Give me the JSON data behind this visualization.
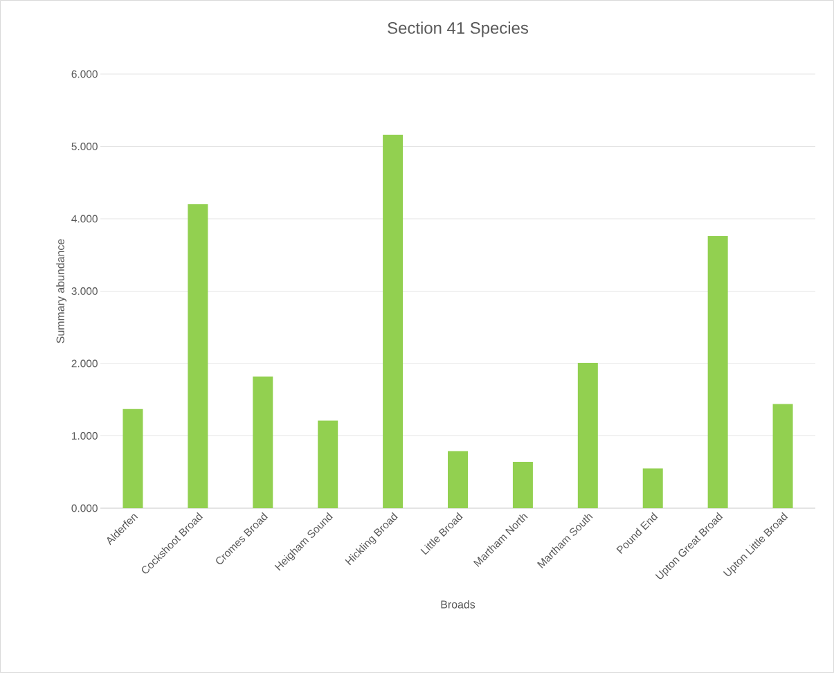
{
  "chart_data": {
    "type": "bar",
    "title": "Section 41 Species",
    "xlabel": "Broads",
    "ylabel": "Summary abundance",
    "categories": [
      "Alderfen",
      "Cockshoot Broad",
      "Cromes Broad",
      "Heigham Sound",
      "Hickling Broad",
      "Little Broad",
      "Martham North",
      "Martham South",
      "Pound End",
      "Upton Great Broad",
      "Upton Little Broad"
    ],
    "values": [
      1.37,
      4.2,
      1.82,
      1.21,
      5.16,
      0.79,
      0.64,
      2.01,
      0.55,
      3.76,
      1.44
    ],
    "color": "#92d050",
    "ylim": [
      0,
      6
    ],
    "yticks": [
      {
        "value": 0,
        "label": "0.000"
      },
      {
        "value": 1,
        "label": "1.000"
      },
      {
        "value": 2,
        "label": "2.000"
      },
      {
        "value": 3,
        "label": "3.000"
      },
      {
        "value": 4,
        "label": "4.000"
      },
      {
        "value": 5,
        "label": "5.000"
      },
      {
        "value": 6,
        "label": "6.000"
      }
    ],
    "grid": "y"
  }
}
